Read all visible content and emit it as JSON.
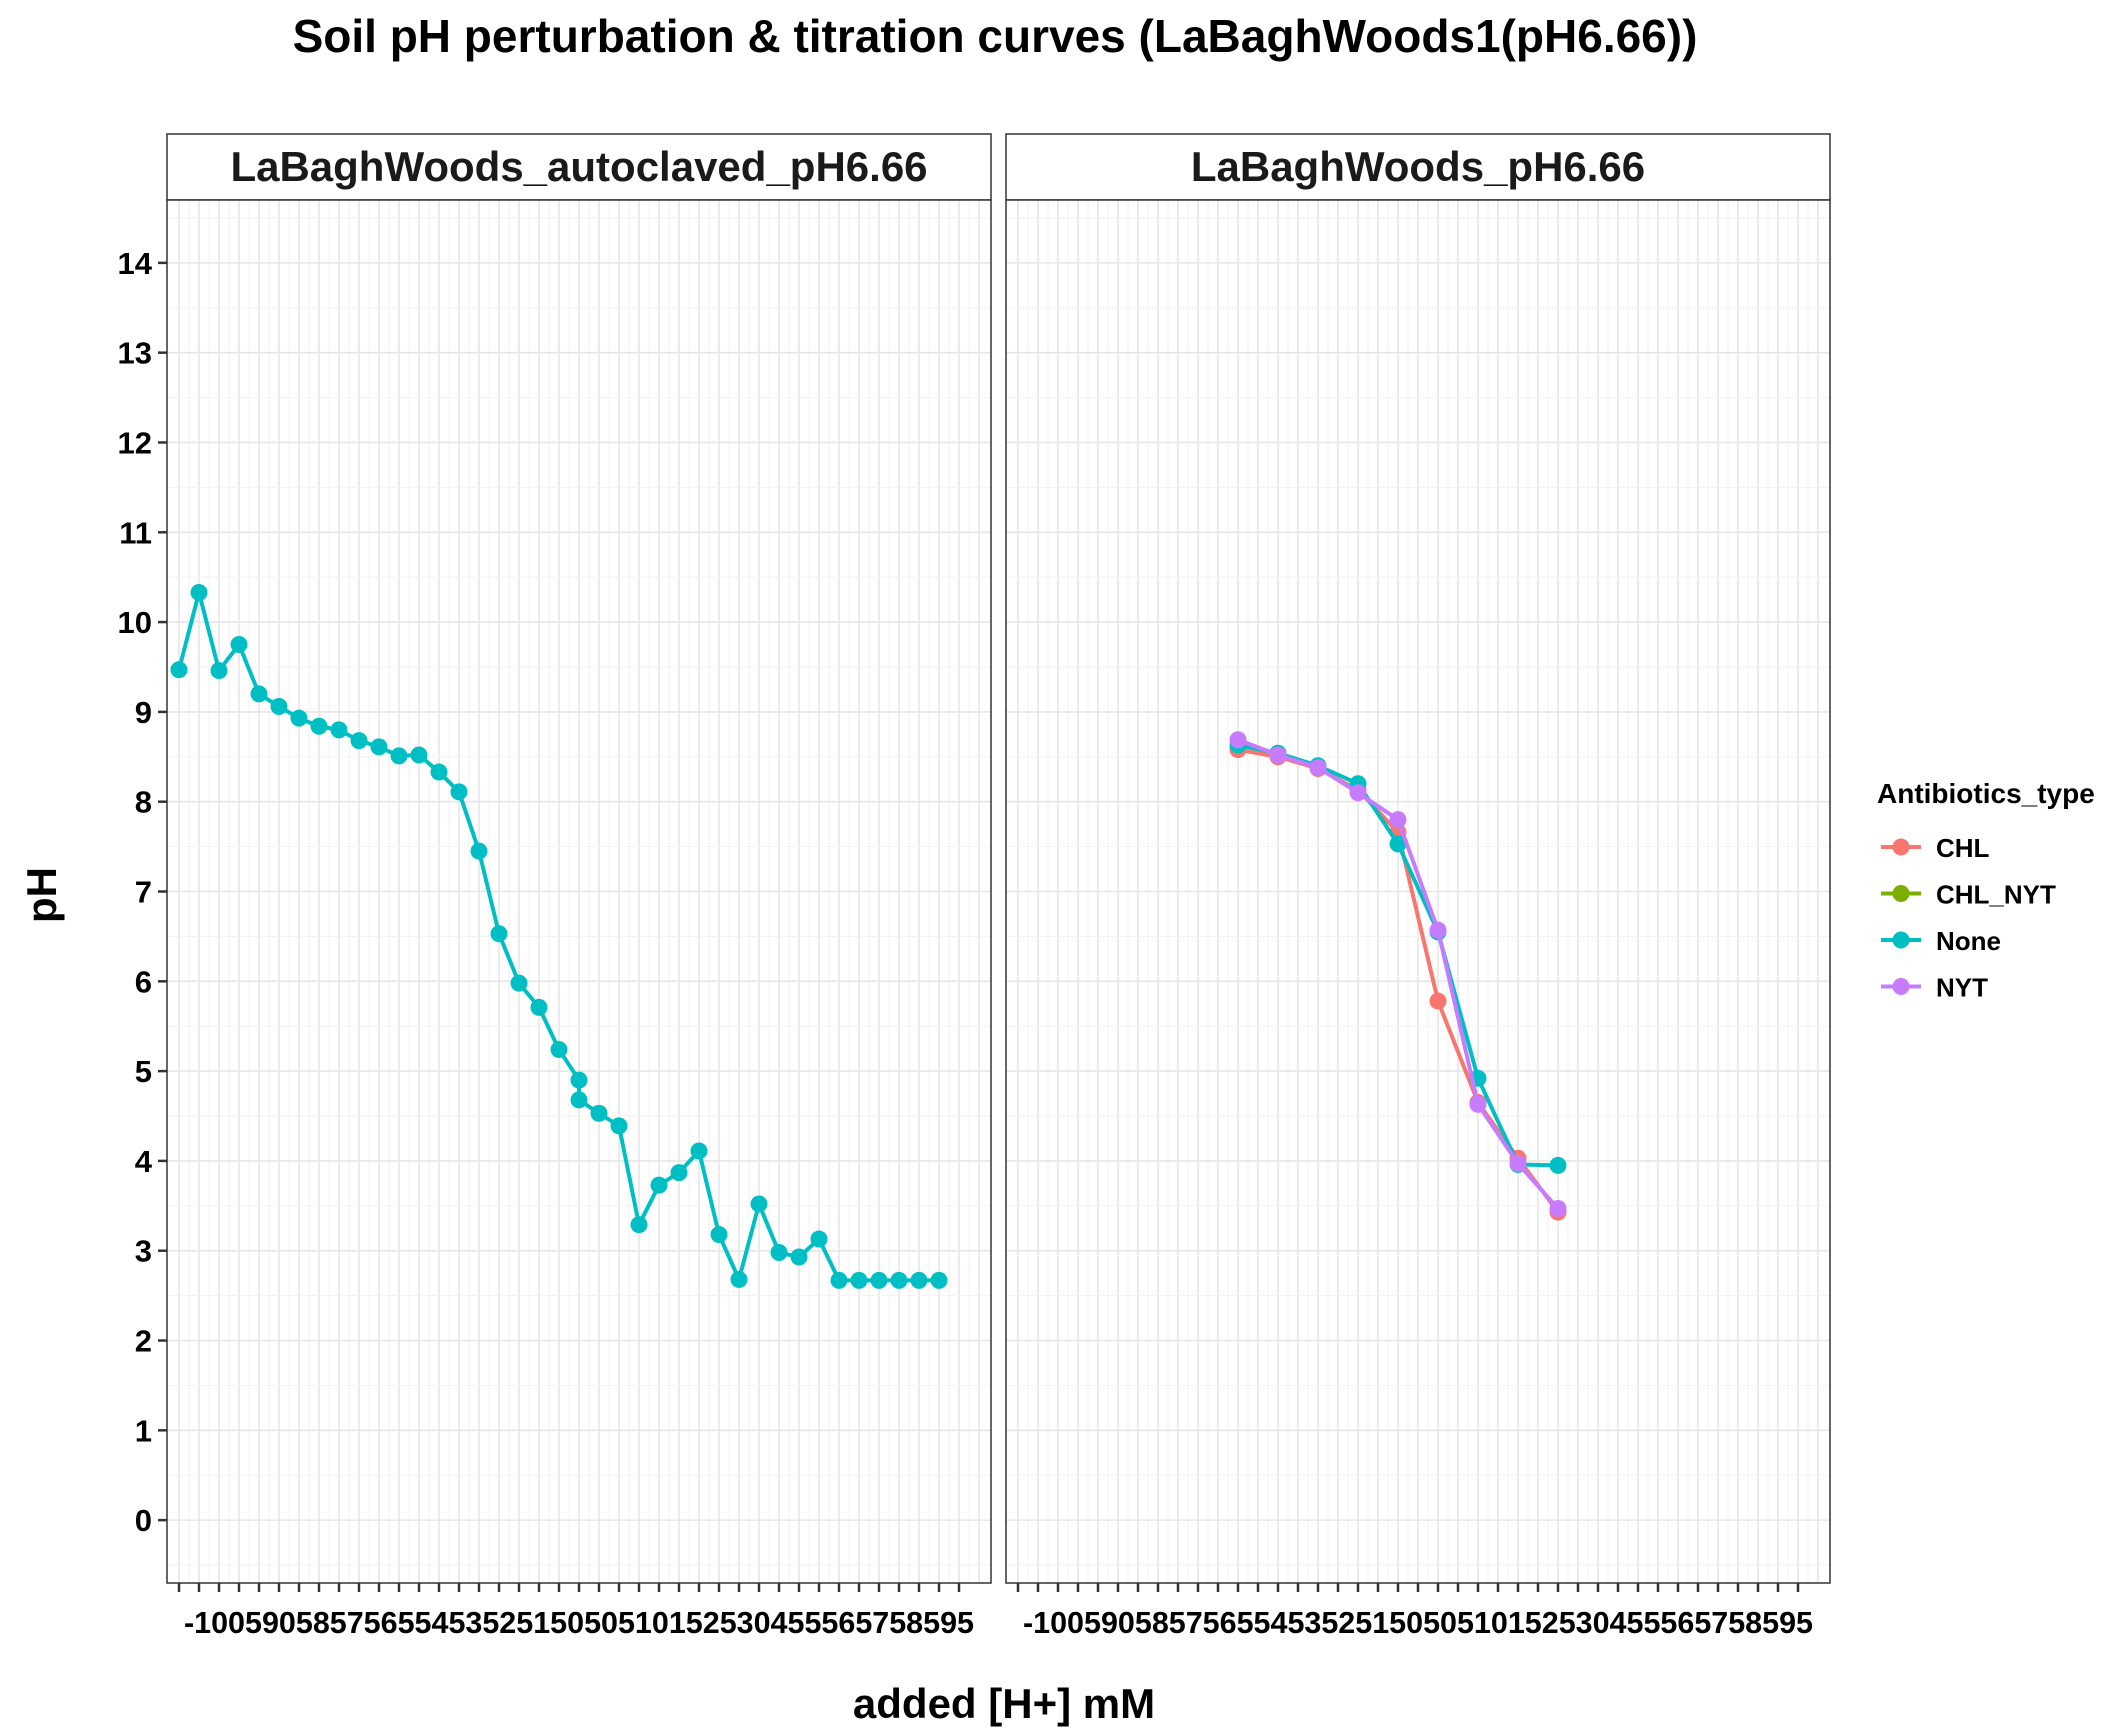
{
  "chart_data": {
    "type": "line",
    "title": "Soil pH perturbation & titration curves (LaBaghWoods1(pH6.66))",
    "xlabel": "added [H+] mM",
    "ylabel": "pH",
    "xlim": [
      -103,
      103
    ],
    "ylim": [
      -0.7,
      14.7
    ],
    "y_ticks": [
      "0",
      "1",
      "2",
      "3",
      "4",
      "5",
      "6",
      "7",
      "8",
      "9",
      "10",
      "11",
      "12",
      "13",
      "14"
    ],
    "x_tick_label_left": "-1005905857565545352515050510152530455565758595",
    "x_tick_label_right": "-1005905857565545352515050510152530455565758595",
    "grid": true,
    "legend": {
      "title": "Antibiotics_type",
      "position": "right",
      "entries": [
        {
          "name": "CHL",
          "color": "#F8766D"
        },
        {
          "name": "CHL_NYT",
          "color": "#7CAE00"
        },
        {
          "name": "None",
          "color": "#00BFC4"
        },
        {
          "name": "NYT",
          "color": "#C77CFF"
        }
      ]
    },
    "panels": [
      {
        "strip": "LaBaghWoods_autoclaved_pH6.66",
        "series": [
          {
            "name": "None",
            "color": "#00BFC4",
            "x": [
              -100,
              -95,
              -90,
              -85,
              -80,
              -75,
              -70,
              -65,
              -60,
              -55,
              -50,
              -45,
              -40,
              -35,
              -30,
              -25,
              -20,
              -15,
              -10,
              -5,
              0,
              0,
              5,
              10,
              15,
              20,
              25,
              30,
              35,
              40,
              45,
              50,
              55,
              60,
              65,
              70,
              75,
              80,
              85,
              90
            ],
            "y": [
              9.47,
              10.33,
              9.46,
              9.75,
              9.2,
              9.06,
              8.93,
              8.84,
              8.8,
              8.68,
              8.61,
              8.51,
              8.52,
              8.33,
              8.11,
              7.45,
              6.53,
              5.98,
              5.71,
              5.24,
              4.9,
              4.68,
              4.53,
              4.39,
              3.29,
              3.73,
              3.87,
              4.11,
              3.18,
              2.68,
              3.52,
              2.98,
              2.93,
              3.13,
              2.67,
              2.67,
              2.67,
              2.67,
              2.67,
              2.67
            ]
          }
        ]
      },
      {
        "strip": "LaBaghWoods_pH6.66",
        "series": [
          {
            "name": "CHL",
            "color": "#F8766D",
            "x": [
              -45,
              -35,
              -25,
              -15,
              -5,
              5,
              15,
              25,
              35
            ],
            "y": [
              8.58,
              8.5,
              8.37,
              8.13,
              7.66,
              5.78,
              4.65,
              4.03,
              3.43
            ]
          },
          {
            "name": "None",
            "color": "#00BFC4",
            "x": [
              -45,
              -35,
              -25,
              -15,
              -5,
              5,
              15,
              25,
              35
            ],
            "y": [
              8.63,
              8.54,
              8.4,
              8.2,
              7.53,
              6.55,
              4.92,
              3.96,
              3.95
            ]
          },
          {
            "name": "NYT",
            "color": "#C77CFF",
            "x": [
              -45,
              -35,
              -25,
              -15,
              -5,
              5,
              15,
              25,
              35
            ],
            "y": [
              8.69,
              8.52,
              8.38,
              8.1,
              7.8,
              6.57,
              4.63,
              3.97,
              3.47
            ]
          }
        ]
      }
    ]
  }
}
